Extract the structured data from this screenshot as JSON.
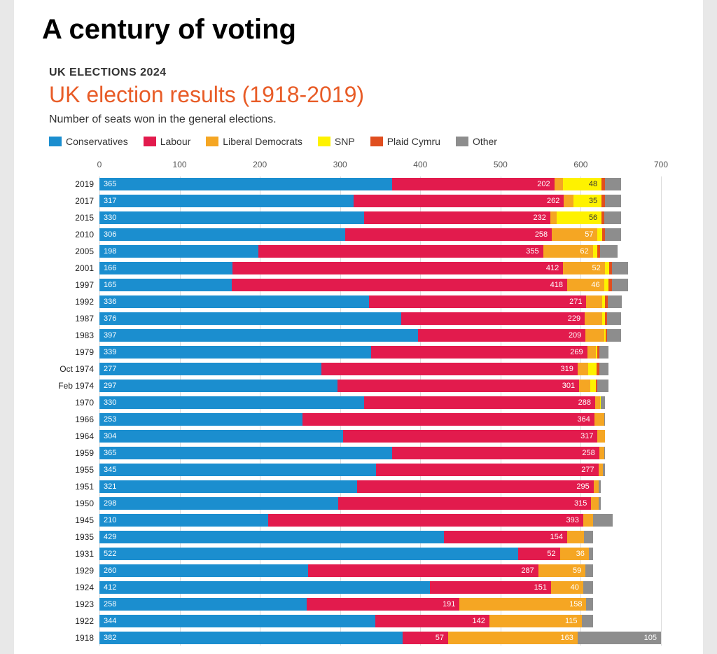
{
  "article_title": "A century of voting",
  "kicker": "UK ELECTIONS 2024",
  "chart_title": "UK election results (1918-2019)",
  "chart_title_color": "#e85c27",
  "chart_desc": "Number of seats won in the general elections.",
  "background_color": "#ffffff",
  "page_bg": "#e8e8e8",
  "grid_color": "#dcdcdc",
  "label_fontsize": 12,
  "title_fontsize": 32,
  "article_title_fontsize": 40,
  "xlim": [
    0,
    700
  ],
  "xtick_step": 100,
  "xticks": [
    0,
    100,
    200,
    300,
    400,
    500,
    600,
    700
  ],
  "parties": [
    {
      "key": "con",
      "label": "Conservatives",
      "color": "#1b8ecf"
    },
    {
      "key": "lab",
      "label": "Labour",
      "color": "#e21b4d"
    },
    {
      "key": "lib",
      "label": "Liberal Democrats",
      "color": "#f5a623"
    },
    {
      "key": "snp",
      "label": "SNP",
      "color": "#fef200"
    },
    {
      "key": "pc",
      "label": "Plaid Cymru",
      "color": "#e04e1f"
    },
    {
      "key": "oth",
      "label": "Other",
      "color": "#8d8d8d"
    }
  ],
  "label_threshold": 30,
  "elections": [
    {
      "year": "2019",
      "con": 365,
      "lab": 202,
      "lib": 11,
      "snp": 48,
      "pc": 4,
      "oth": 20
    },
    {
      "year": "2017",
      "con": 317,
      "lab": 262,
      "lib": 12,
      "snp": 35,
      "pc": 4,
      "oth": 20
    },
    {
      "year": "2015",
      "con": 330,
      "lab": 232,
      "lib": 8,
      "snp": 56,
      "pc": 3,
      "oth": 21
    },
    {
      "year": "2010",
      "con": 306,
      "lab": 258,
      "lib": 57,
      "snp": 6,
      "pc": 3,
      "oth": 20
    },
    {
      "year": "2005",
      "con": 198,
      "lab": 355,
      "lib": 62,
      "snp": 6,
      "pc": 3,
      "oth": 22
    },
    {
      "year": "2001",
      "con": 166,
      "lab": 412,
      "lib": 52,
      "snp": 5,
      "pc": 4,
      "oth": 20
    },
    {
      "year": "1997",
      "con": 165,
      "lab": 418,
      "lib": 46,
      "snp": 6,
      "pc": 4,
      "oth": 20
    },
    {
      "year": "1992",
      "con": 336,
      "lab": 271,
      "lib": 20,
      "snp": 3,
      "pc": 4,
      "oth": 17
    },
    {
      "year": "1987",
      "con": 376,
      "lab": 229,
      "lib": 22,
      "snp": 3,
      "pc": 3,
      "oth": 17
    },
    {
      "year": "1983",
      "con": 397,
      "lab": 209,
      "lib": 23,
      "snp": 2,
      "pc": 2,
      "oth": 17
    },
    {
      "year": "1979",
      "con": 339,
      "lab": 269,
      "lib": 11,
      "snp": 2,
      "pc": 2,
      "oth": 12
    },
    {
      "year": "Oct 1974",
      "con": 277,
      "lab": 319,
      "lib": 13,
      "snp": 11,
      "pc": 3,
      "oth": 12
    },
    {
      "year": "Feb 1974",
      "con": 297,
      "lab": 301,
      "lib": 14,
      "snp": 7,
      "pc": 2,
      "oth": 14
    },
    {
      "year": "1970",
      "con": 330,
      "lab": 288,
      "lib": 6,
      "snp": 1,
      "pc": 0,
      "oth": 5
    },
    {
      "year": "1966",
      "con": 253,
      "lab": 364,
      "lib": 12,
      "snp": 0,
      "pc": 0,
      "oth": 1
    },
    {
      "year": "1964",
      "con": 304,
      "lab": 317,
      "lib": 9,
      "snp": 0,
      "pc": 0,
      "oth": 0
    },
    {
      "year": "1959",
      "con": 365,
      "lab": 258,
      "lib": 6,
      "snp": 0,
      "pc": 0,
      "oth": 1
    },
    {
      "year": "1955",
      "con": 345,
      "lab": 277,
      "lib": 6,
      "snp": 0,
      "pc": 0,
      "oth": 2
    },
    {
      "year": "1951",
      "con": 321,
      "lab": 295,
      "lib": 6,
      "snp": 0,
      "pc": 0,
      "oth": 3
    },
    {
      "year": "1950",
      "con": 298,
      "lab": 315,
      "lib": 9,
      "snp": 0,
      "pc": 0,
      "oth": 3
    },
    {
      "year": "1945",
      "con": 210,
      "lab": 393,
      "lib": 12,
      "snp": 0,
      "pc": 0,
      "oth": 25
    },
    {
      "year": "1935",
      "con": 429,
      "lab": 154,
      "lib": 21,
      "snp": 0,
      "pc": 0,
      "oth": 11
    },
    {
      "year": "1931",
      "con": 522,
      "lab": 52,
      "lib": 36,
      "snp": 0,
      "pc": 0,
      "oth": 5
    },
    {
      "year": "1929",
      "con": 260,
      "lab": 287,
      "lib": 59,
      "snp": 0,
      "pc": 0,
      "oth": 9
    },
    {
      "year": "1924",
      "con": 412,
      "lab": 151,
      "lib": 40,
      "snp": 0,
      "pc": 0,
      "oth": 12
    },
    {
      "year": "1923",
      "con": 258,
      "lab": 191,
      "lib": 158,
      "snp": 0,
      "pc": 0,
      "oth": 8
    },
    {
      "year": "1922",
      "con": 344,
      "lab": 142,
      "lib": 115,
      "snp": 0,
      "pc": 0,
      "oth": 14
    },
    {
      "year": "1918",
      "con": 382,
      "lab": 57,
      "lib": 163,
      "snp": 0,
      "pc": 0,
      "oth": 105
    }
  ]
}
